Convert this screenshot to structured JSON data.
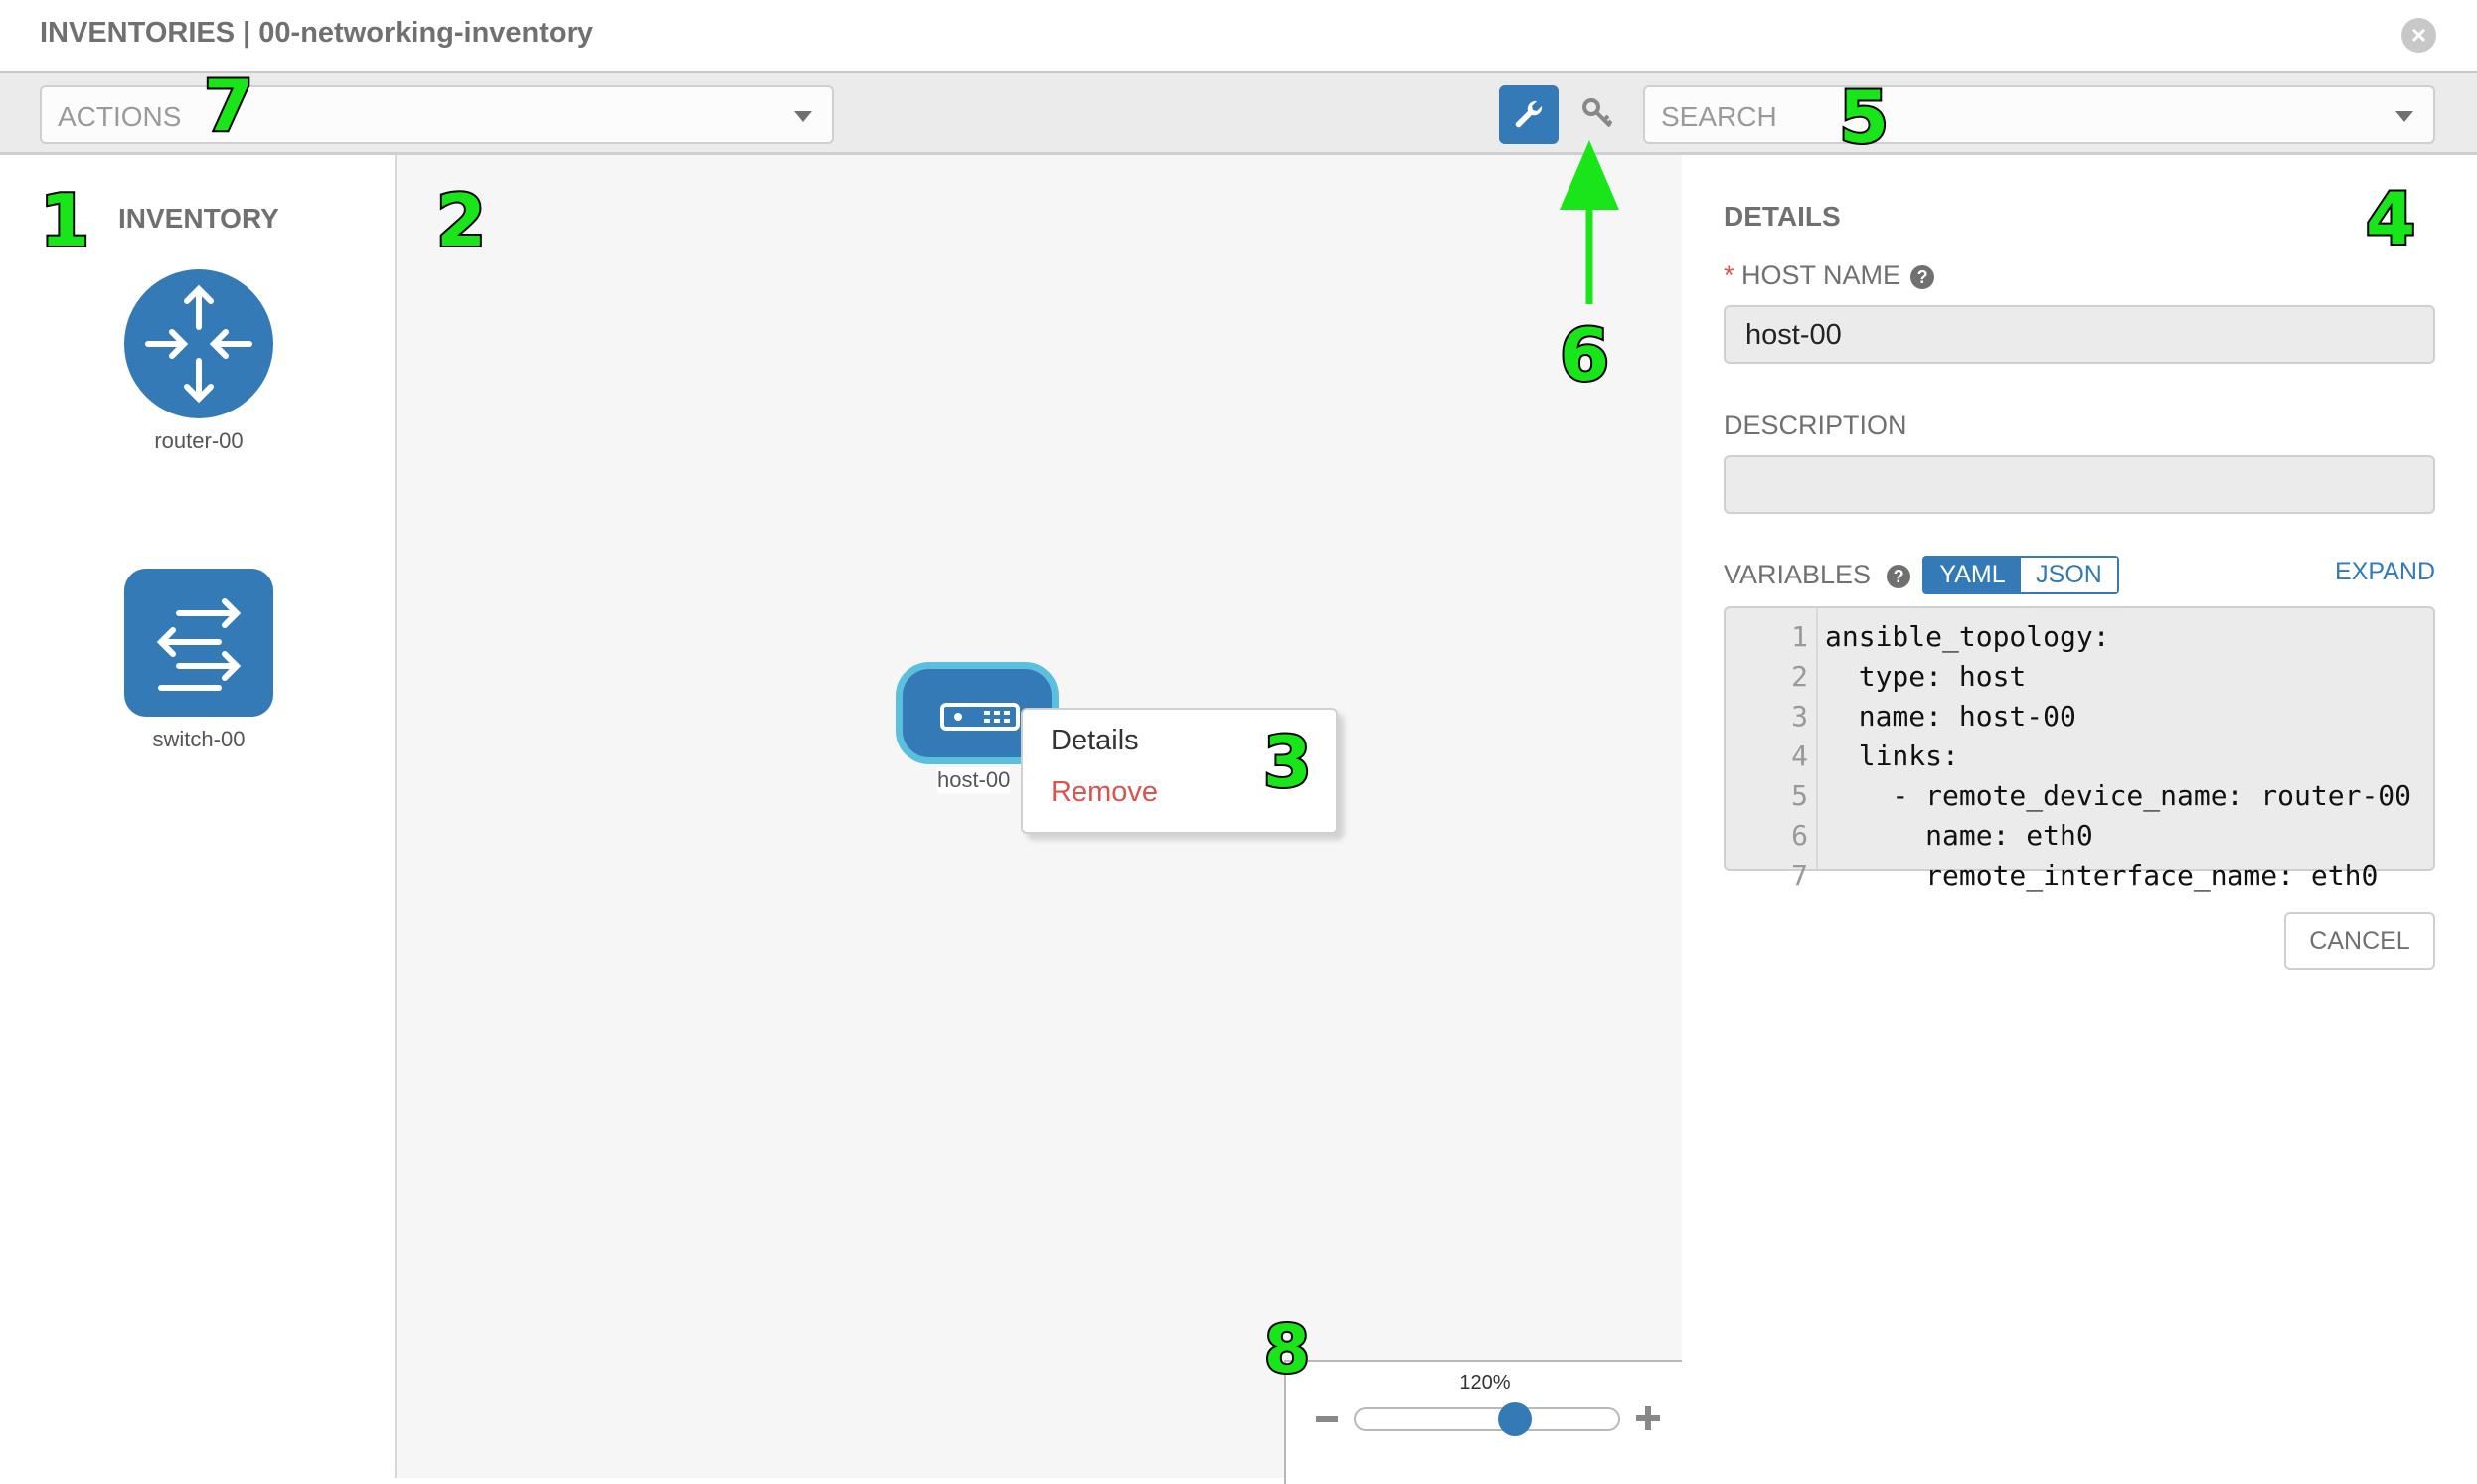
{
  "header": {
    "title": "INVENTORIES | 00-networking-inventory",
    "close_icon": "close-circle-icon"
  },
  "toolbar": {
    "actions_placeholder": "ACTIONS",
    "search_placeholder": "SEARCH",
    "tools": [
      {
        "icon": "wrench-icon",
        "active": true
      },
      {
        "icon": "key-icon",
        "active": false
      }
    ]
  },
  "inventory": {
    "title": "INVENTORY",
    "items": [
      {
        "label": "router-00",
        "icon": "router-icon"
      },
      {
        "label": "switch-00",
        "icon": "switch-icon"
      }
    ]
  },
  "canvas": {
    "node": {
      "label": "host-00",
      "icon": "server-icon"
    },
    "context_menu": [
      {
        "label": "Details"
      },
      {
        "label": "Remove",
        "color": "#d9534f"
      }
    ],
    "zoom": {
      "label": "120%",
      "value_percent": 120
    }
  },
  "details": {
    "title": "DETAILS",
    "host_name_label": "HOST NAME",
    "required_mark": "*",
    "host_name_value": "host-00",
    "description_label": "DESCRIPTION",
    "description_value": "",
    "variables_label": "VARIABLES",
    "format_options": [
      "YAML",
      "JSON"
    ],
    "selected_format": "YAML",
    "expand_label": "EXPAND",
    "code_lines": [
      {
        "n": "1",
        "text": "ansible_topology:"
      },
      {
        "n": "2",
        "text": "  type: host"
      },
      {
        "n": "3",
        "text": "  name: host-00"
      },
      {
        "n": "4",
        "text": "  links:"
      },
      {
        "n": "5",
        "text": "    - remote_device_name: router-00"
      },
      {
        "n": "6",
        "text": "      name: eth0"
      },
      {
        "n": "7",
        "text": "      remote_interface_name: eth0"
      }
    ],
    "cancel_label": "CANCEL"
  },
  "annotations": [
    "1",
    "2",
    "3",
    "4",
    "5",
    "6",
    "7",
    "8"
  ],
  "colors": {
    "accent": "#337ab7",
    "node_border": "#5bc0de",
    "danger": "#d9534f",
    "annotation": "#19e619"
  }
}
